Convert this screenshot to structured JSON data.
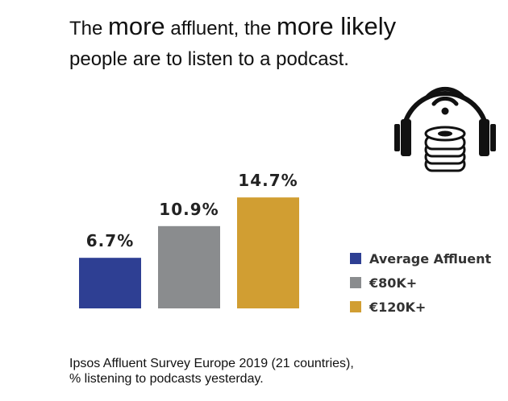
{
  "title": {
    "part1": "The ",
    "emph1": "more",
    "part2": " affluent, the ",
    "emph2": "more likely",
    "line2": "people are to listen to a podcast."
  },
  "icon": "headphones-coin-stack-icon",
  "chart_data": {
    "type": "bar",
    "categories": [
      "Average Affluent",
      "€80K+",
      "€120K+"
    ],
    "values": [
      6.7,
      10.9,
      14.7
    ],
    "value_labels": [
      "6.7%",
      "10.9%",
      "14.7%"
    ],
    "colors": [
      "#2e3f93",
      "#8a8c8e",
      "#d19e32"
    ],
    "ylim": [
      0,
      16
    ],
    "grid": false,
    "legend_position": "right",
    "xlabel": "",
    "ylabel": ""
  },
  "source": {
    "line1": "Ipsos Affluent Survey Europe 2019 (21 countries),",
    "line2": "% listening to podcasts yesterday."
  }
}
